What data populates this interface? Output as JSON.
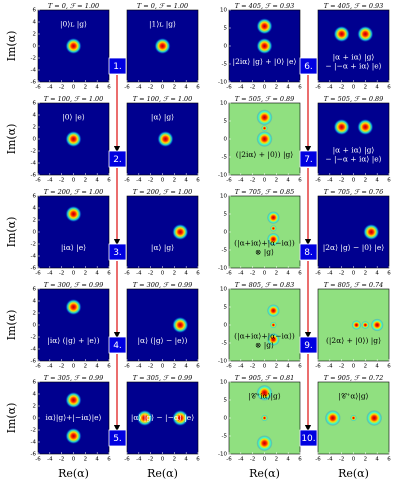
{
  "axes": {
    "x_label": "Re(α)",
    "y_label": "Im(α)",
    "xlim": [
      -6,
      6
    ],
    "xticks": [
      -6,
      -4,
      -2,
      0,
      2,
      4,
      6
    ],
    "ylim": [
      -6,
      6
    ],
    "yticks": [
      6,
      4,
      2,
      0,
      -2,
      -4,
      -6
    ],
    "col3_ylim": [
      -10,
      10
    ],
    "col3_yticks": [
      10,
      5,
      0,
      -5,
      -10
    ]
  },
  "steps": [
    "1.",
    "2.",
    "3.",
    "4.",
    "5.",
    "6.",
    "7.",
    "8.",
    "9.",
    "10."
  ],
  "panels": [
    {
      "header": "T = 0, ℱ = 1.00",
      "label": [
        "|0⟩ʟ |g⟩"
      ],
      "background": "#00008f",
      "peaks": [
        [
          0,
          0,
          1
        ]
      ]
    },
    {
      "header": "T = 0, ℱ = 1.00",
      "label": [
        "|1⟩ʟ |g⟩"
      ],
      "background": "#00008f",
      "peaks": [
        [
          0,
          0,
          1
        ]
      ]
    },
    {
      "header": "T = 405, ℱ = 0.93",
      "label": [
        "|2iα⟩ |g⟩ + |0⟩ |e⟩"
      ],
      "background": "#00008f",
      "peaks": [
        [
          0,
          5.5,
          1
        ],
        [
          0,
          0,
          1
        ]
      ]
    },
    {
      "header": "T = 405, ℱ = 0.93",
      "label": [
        "|α + iα⟩ |g⟩",
        "− |−α + iα⟩ |e⟩"
      ],
      "background": "#00008f",
      "peaks": [
        [
          -2,
          2,
          1
        ],
        [
          2,
          2,
          1
        ]
      ]
    },
    {
      "header": "T = 100, ℱ = 1.00",
      "label": [
        "|0⟩ |e⟩"
      ],
      "background": "#00008f",
      "peaks": [
        [
          0,
          0,
          1
        ]
      ]
    },
    {
      "header": "T = 100, ℱ = 1.00",
      "label": [
        "|α⟩ |g⟩"
      ],
      "background": "#00008f",
      "peaks": [
        [
          0.5,
          0,
          1
        ]
      ]
    },
    {
      "header": "T = 505, ℱ = 0.89",
      "label": [
        "(|2iα⟩ + |0⟩) |g⟩"
      ],
      "background": "#90e080",
      "peaks": [
        [
          0,
          6,
          1
        ],
        [
          0,
          3,
          0.4
        ],
        [
          0,
          0,
          1
        ]
      ]
    },
    {
      "header": "T = 505, ℱ = 0.89",
      "label": [
        "|α + iα⟩ |g⟩",
        "− |−α + iα⟩ |e⟩"
      ],
      "background": "#00008f",
      "peaks": [
        [
          -2,
          2,
          1
        ],
        [
          2,
          2,
          1
        ]
      ]
    },
    {
      "header": "T = 200, ℱ = 1.00",
      "label": [
        "|iα⟩ |e⟩"
      ],
      "background": "#00008f",
      "peaks": [
        [
          0,
          3,
          1
        ]
      ]
    },
    {
      "header": "T = 200, ℱ = 1.00",
      "label": [
        "|α⟩ |g⟩"
      ],
      "background": "#00008f",
      "peaks": [
        [
          3,
          0,
          1
        ]
      ]
    },
    {
      "header": "T = 705, ℱ = 0.85",
      "label": [
        "(|α+iα⟩+|α−iα⟩)",
        "⊗ |g⟩"
      ],
      "background": "#90e080",
      "peaks": [
        [
          1.5,
          4,
          0.8
        ],
        [
          1.5,
          1,
          0.4
        ],
        [
          1.5,
          -2,
          0.8
        ]
      ]
    },
    {
      "header": "T = 705, ℱ = 0.76",
      "label": [
        "|2α⟩ |g⟩ − |0⟩ |e⟩"
      ],
      "background": "#00008f",
      "peaks": [
        [
          3,
          0,
          1
        ]
      ]
    },
    {
      "header": "T = 300, ℱ = 0.99",
      "label": [
        "|iα⟩ (|g⟩ + |e⟩)"
      ],
      "background": "#00008f",
      "peaks": [
        [
          0,
          3,
          1
        ]
      ]
    },
    {
      "header": "T = 300, ℱ = 0.99",
      "label": [
        "|α⟩ (|g⟩ − |e⟩)"
      ],
      "background": "#00008f",
      "peaks": [
        [
          3,
          0,
          1
        ]
      ]
    },
    {
      "header": "T = 805, ℱ = 0.83",
      "label": [
        "(|α+iα⟩+|α−iα⟩)",
        "⊗ |g⟩"
      ],
      "background": "#90e080",
      "peaks": [
        [
          1.5,
          4,
          0.8
        ],
        [
          1.5,
          0,
          0.4
        ],
        [
          1.5,
          -4,
          0.8
        ]
      ]
    },
    {
      "header": "T = 805, ℱ = 0.74",
      "label": [
        "(|2α⟩ + |0⟩) |g⟩"
      ],
      "background": "#90e080",
      "peaks": [
        [
          0.5,
          0,
          0.6
        ],
        [
          2,
          0,
          0.5
        ],
        [
          4,
          0,
          0.8
        ]
      ]
    },
    {
      "header": "T = 305, ℱ = 0.99",
      "label": [
        "iα⟩|g⟩+|−iα⟩|e⟩"
      ],
      "background": "#00008f",
      "peaks": [
        [
          0,
          3,
          1
        ],
        [
          0,
          -3,
          1
        ]
      ]
    },
    {
      "header": "T = 305, ℱ = 0.99",
      "label": [
        "|α⟩ |g⟩ − |−α⟩ |e⟩"
      ],
      "background": "#00008f",
      "peaks": [
        [
          -3,
          0,
          1
        ],
        [
          3,
          0,
          1
        ]
      ]
    },
    {
      "header": "T = 905, ℱ = 0.81",
      "label": [
        "|𝒞⁺iα⟩|g⟩"
      ],
      "background": "#90e080",
      "peaks": [
        [
          0,
          7,
          1
        ],
        [
          0,
          0,
          0.4
        ],
        [
          0,
          -7,
          1
        ]
      ]
    },
    {
      "header": "T = 905, ℱ = 0.72",
      "label": [
        "|𝒞⁺α⟩|g⟩"
      ],
      "background": "#90e080",
      "peaks": [
        [
          -3.5,
          0,
          1
        ],
        [
          0,
          0,
          0.4
        ],
        [
          3.5,
          0,
          1
        ]
      ]
    }
  ]
}
